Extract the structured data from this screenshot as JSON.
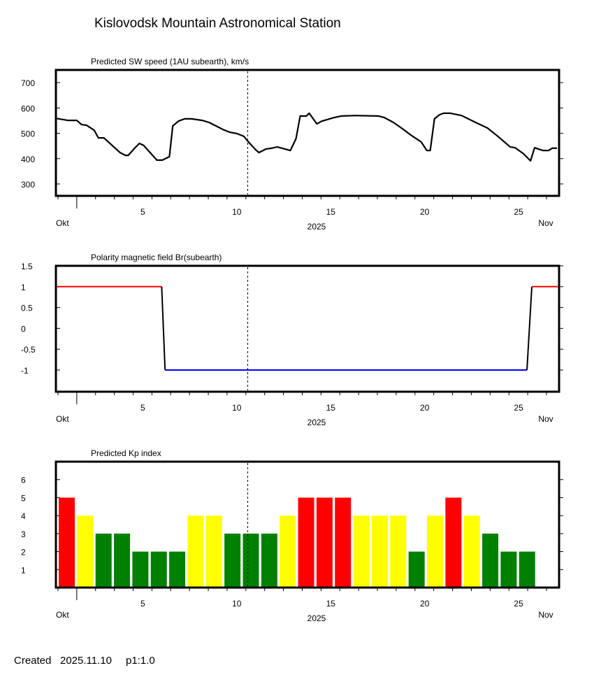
{
  "title": "Kislovodsk Mountain Astronomical Station",
  "footer": {
    "created_label": "Created",
    "date": "2025.11.10",
    "page": "p1:1.0"
  },
  "x_axis": {
    "tick_labels": [
      "5",
      "10",
      "15",
      "20",
      "25"
    ],
    "tick_days": [
      5,
      10,
      15,
      20,
      25
    ],
    "month_start": "Okt",
    "month_end": "Nov",
    "year": "2025",
    "xlim_days": [
      -0.11,
      26.67
    ],
    "current_marker_day": 10.1
  },
  "colors": {
    "red": "#ff0000",
    "yellow": "#ffff00",
    "green": "#008000",
    "blue": "#0000ff",
    "darkred": "#cc0000"
  },
  "chart_data": [
    {
      "type": "line",
      "title": "Predicted SW speed (1AU subearth), km/s",
      "ylabel": "km/s",
      "ylim": [
        253,
        750
      ],
      "yticks": [
        300,
        400,
        500,
        600,
        700
      ],
      "ytick_labels": [
        "300",
        "400",
        "500",
        "600",
        "700"
      ],
      "x": [
        -0.11,
        0.52,
        1.0,
        1.26,
        1.52,
        1.93,
        2.15,
        2.44,
        2.93,
        3.3,
        3.59,
        3.74,
        4.04,
        4.33,
        4.56,
        5.26,
        5.56,
        5.93,
        6.11,
        6.41,
        6.74,
        7.11,
        7.67,
        8.04,
        8.41,
        8.78,
        9.15,
        9.52,
        9.89,
        10.11,
        10.52,
        10.7,
        11.07,
        11.37,
        11.67,
        11.93,
        12.37,
        12.67,
        12.89,
        13.22,
        13.37,
        13.78,
        14.04,
        14.7,
        15.07,
        15.81,
        17.07,
        17.37,
        17.85,
        18.33,
        18.78,
        19.33,
        19.63,
        19.81,
        20.04,
        20.3,
        20.52,
        20.89,
        21.48,
        22.22,
        22.85,
        23.33,
        24.07,
        24.33,
        24.78,
        25.15,
        25.37,
        25.81,
        26.11,
        26.3,
        26.56
      ],
      "y": [
        559,
        551,
        551,
        534,
        532,
        512,
        482,
        482,
        449,
        424,
        413,
        413,
        438,
        460,
        452,
        394,
        394,
        408,
        529,
        548,
        557,
        557,
        551,
        543,
        529,
        515,
        504,
        499,
        488,
        468,
        435,
        424,
        438,
        441,
        446,
        441,
        432,
        479,
        568,
        568,
        579,
        537,
        548,
        562,
        568,
        570,
        568,
        562,
        543,
        518,
        493,
        466,
        432,
        432,
        557,
        573,
        579,
        579,
        570,
        543,
        521,
        493,
        446,
        443,
        419,
        391,
        443,
        432,
        432,
        441,
        441
      ]
    },
    {
      "type": "line",
      "title": "Polarity magnetic field  Br(subearth)",
      "ylim": [
        -1.52,
        1.5
      ],
      "yticks": [
        1.5,
        1,
        0.5,
        0,
        -0.5,
        -1
      ],
      "ytick_labels": [
        "1.5",
        "1",
        "0.5",
        "0",
        "-0.5",
        "-1"
      ],
      "segments": [
        {
          "color": "red",
          "x": [
            -0.11,
            5.52
          ],
          "y": [
            1,
            1
          ]
        },
        {
          "color": "black",
          "x": [
            5.52,
            5.7
          ],
          "y": [
            1,
            -1
          ]
        },
        {
          "color": "blue",
          "x": [
            5.7,
            24.96
          ],
          "y": [
            -1,
            -1
          ]
        },
        {
          "color": "black",
          "x": [
            24.96,
            25.22
          ],
          "y": [
            -1,
            1
          ]
        },
        {
          "color": "red",
          "x": [
            25.22,
            26.67
          ],
          "y": [
            1,
            1
          ]
        }
      ]
    },
    {
      "type": "bar",
      "title": "Predicted Kp index",
      "ylim": [
        0,
        7
      ],
      "yticks": [
        1,
        2,
        3,
        4,
        5,
        6
      ],
      "ytick_labels": [
        "1",
        "2",
        "3",
        "4",
        "5",
        "6"
      ],
      "values": [
        5,
        4,
        3,
        3,
        2,
        2,
        2,
        4,
        4,
        3,
        3,
        3,
        4,
        5,
        5,
        5,
        4,
        4,
        4,
        2,
        4,
        5,
        4,
        3,
        2,
        2
      ],
      "color_rule": {
        "5": "red",
        "4": "yellow",
        "3": "green",
        "2": "green",
        "1": "green"
      }
    }
  ]
}
